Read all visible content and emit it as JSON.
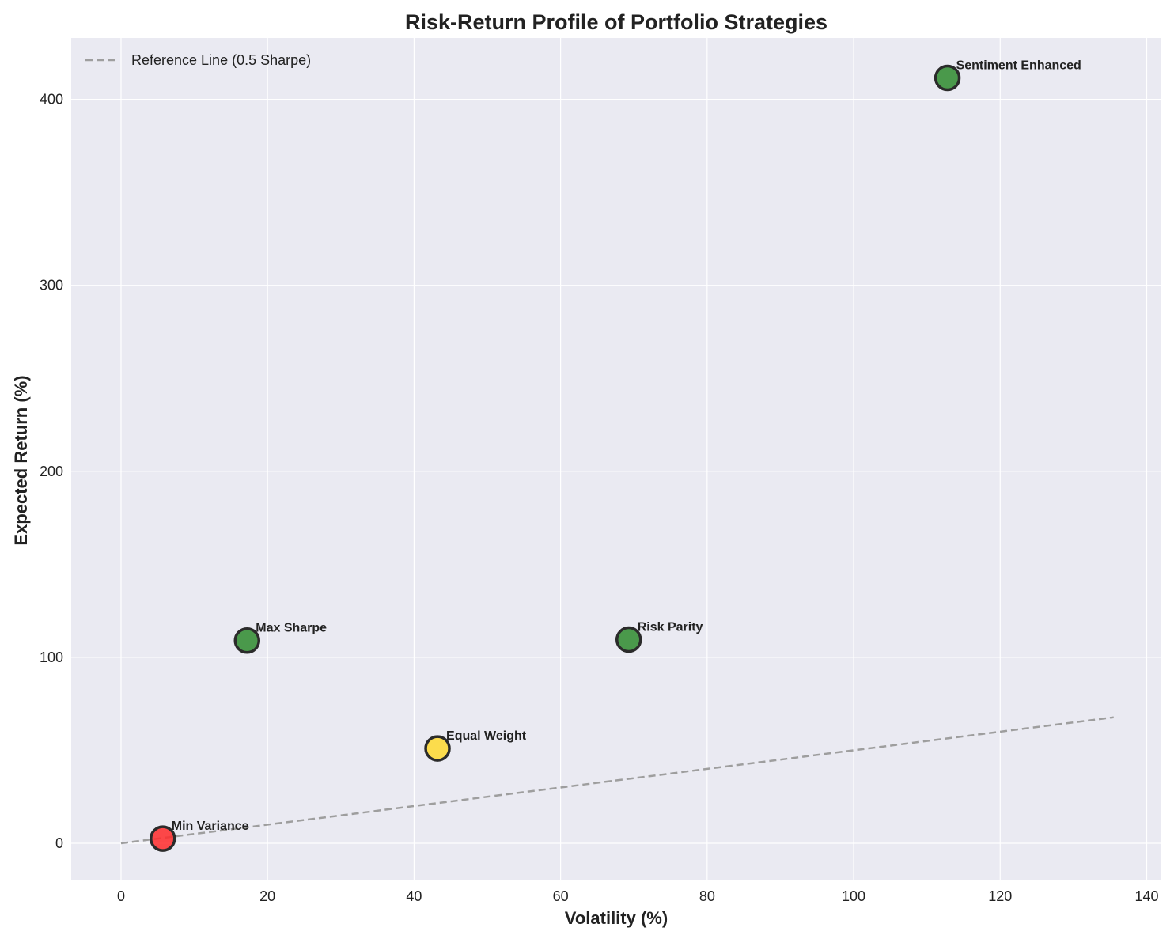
{
  "chart_data": {
    "type": "scatter",
    "title": "Risk-Return Profile of Portfolio Strategies",
    "xlabel": "Volatility (%)",
    "ylabel": "Expected Return (%)",
    "xlim": [
      -6.8,
      142
    ],
    "ylim": [
      -20,
      433
    ],
    "xticks": [
      0,
      20,
      40,
      60,
      80,
      100,
      120,
      140
    ],
    "yticks": [
      0,
      100,
      200,
      300,
      400
    ],
    "grid": true,
    "legend_position": "top-left",
    "points": [
      {
        "label": "Min Variance",
        "x": 5.7,
        "y": 2.5,
        "color": "#ff2a2a"
      },
      {
        "label": "Max Sharpe",
        "x": 17.2,
        "y": 109,
        "color": "#2e8b2e"
      },
      {
        "label": "Equal Weight",
        "x": 43.2,
        "y": 51,
        "color": "#ffd92f"
      },
      {
        "label": "Risk Parity",
        "x": 69.3,
        "y": 109.5,
        "color": "#2e8b2e"
      },
      {
        "label": "Sentiment Enhanced",
        "x": 112.8,
        "y": 411.5,
        "color": "#2e8b2e"
      }
    ],
    "reference_line": {
      "name": "Reference Line (0.5 Sharpe)",
      "x": [
        0,
        135.5
      ],
      "y": [
        0,
        67.75
      ],
      "color": "#9e9e9e",
      "style": "dashed"
    }
  }
}
